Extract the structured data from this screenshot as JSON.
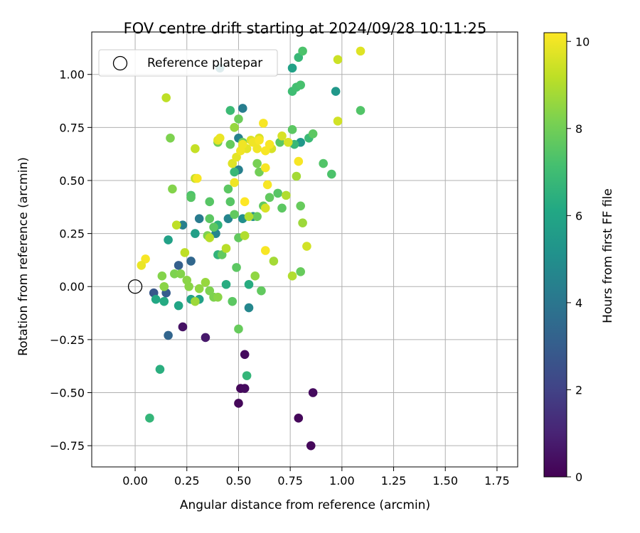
{
  "chart_data": {
    "type": "scatter",
    "title": "FOV centre drift starting at 2024/09/28 10:11:25",
    "xlabel": "Angular distance from reference (arcmin)",
    "ylabel": "Rotation from reference (arcmin)",
    "xlim": [
      -0.21,
      1.85
    ],
    "ylim": [
      -0.85,
      1.2
    ],
    "xticks": [
      "0.00",
      "0.25",
      "0.50",
      "0.75",
      "1.00",
      "1.25",
      "1.50",
      "1.75"
    ],
    "yticks": [
      "−0.75",
      "−0.50",
      "−0.25",
      "0.00",
      "0.25",
      "0.50",
      "0.75",
      "1.00"
    ],
    "xtick_values": [
      0,
      0.25,
      0.5,
      0.75,
      1.0,
      1.25,
      1.5,
      1.75
    ],
    "ytick_values": [
      -0.75,
      -0.5,
      -0.25,
      0,
      0.25,
      0.5,
      0.75,
      1.0
    ],
    "grid": true,
    "legend": {
      "position": "top-left",
      "entries": [
        "Reference platepar"
      ]
    },
    "reference_point": {
      "x": 0.0,
      "y": 0.0
    },
    "colorbar": {
      "label": "Hours from first FF file",
      "range": [
        0,
        10.2
      ],
      "ticks": [
        "0",
        "2",
        "4",
        "6",
        "8",
        "10"
      ],
      "tick_values": [
        0,
        2,
        4,
        6,
        8,
        10
      ],
      "colormap": "viridis"
    },
    "points": [
      {
        "x": 0.5,
        "y": -0.55,
        "t": 0.2
      },
      {
        "x": 0.51,
        "y": -0.48,
        "t": 0.2
      },
      {
        "x": 0.53,
        "y": -0.48,
        "t": 0.3
      },
      {
        "x": 0.53,
        "y": -0.32,
        "t": 0.3
      },
      {
        "x": 0.79,
        "y": -0.62,
        "t": 0.2
      },
      {
        "x": 0.85,
        "y": -0.75,
        "t": 0.2
      },
      {
        "x": 0.86,
        "y": -0.5,
        "t": 0.3
      },
      {
        "x": 0.23,
        "y": -0.19,
        "t": 0.5
      },
      {
        "x": 0.34,
        "y": -0.24,
        "t": 0.7
      },
      {
        "x": 0.09,
        "y": -0.03,
        "t": 2.8
      },
      {
        "x": 0.15,
        "y": -0.03,
        "t": 3.0
      },
      {
        "x": 0.16,
        "y": -0.23,
        "t": 3.3
      },
      {
        "x": 0.21,
        "y": 0.1,
        "t": 3.1
      },
      {
        "x": 0.27,
        "y": 0.12,
        "t": 3.4
      },
      {
        "x": 0.41,
        "y": 1.03,
        "t": 4.5
      },
      {
        "x": 0.52,
        "y": 0.84,
        "t": 4.3
      },
      {
        "x": 0.5,
        "y": 0.7,
        "t": 4.5
      },
      {
        "x": 0.5,
        "y": 0.55,
        "t": 4.4
      },
      {
        "x": 0.31,
        "y": 0.32,
        "t": 4.2
      },
      {
        "x": 0.23,
        "y": 0.29,
        "t": 4.4
      },
      {
        "x": 0.45,
        "y": 0.32,
        "t": 4.6
      },
      {
        "x": 0.39,
        "y": 0.25,
        "t": 4.6
      },
      {
        "x": 0.55,
        "y": -0.1,
        "t": 4.7
      },
      {
        "x": 0.52,
        "y": 0.32,
        "t": 5.0
      },
      {
        "x": 0.57,
        "y": 0.33,
        "t": 5.0
      },
      {
        "x": 0.97,
        "y": 0.92,
        "t": 5.4
      },
      {
        "x": 0.76,
        "y": 1.03,
        "t": 5.8
      },
      {
        "x": 0.8,
        "y": 0.68,
        "t": 5.4
      },
      {
        "x": 0.29,
        "y": 0.25,
        "t": 5.7
      },
      {
        "x": 0.16,
        "y": 0.22,
        "t": 5.8
      },
      {
        "x": 0.31,
        "y": -0.06,
        "t": 5.8
      },
      {
        "x": 0.27,
        "y": -0.06,
        "t": 5.9
      },
      {
        "x": 0.21,
        "y": -0.09,
        "t": 6.0
      },
      {
        "x": 0.1,
        "y": -0.06,
        "t": 6.1
      },
      {
        "x": 0.14,
        "y": -0.07,
        "t": 6.2
      },
      {
        "x": 0.44,
        "y": 0.01,
        "t": 6.3
      },
      {
        "x": 0.55,
        "y": 0.01,
        "t": 6.3
      },
      {
        "x": 0.12,
        "y": -0.39,
        "t": 6.4
      },
      {
        "x": 0.07,
        "y": -0.62,
        "t": 6.7
      },
      {
        "x": 0.54,
        "y": -0.42,
        "t": 6.7
      },
      {
        "x": 0.4,
        "y": 0.29,
        "t": 6.5
      },
      {
        "x": 0.4,
        "y": 0.15,
        "t": 6.6
      },
      {
        "x": 0.79,
        "y": 1.08,
        "t": 6.8
      },
      {
        "x": 0.46,
        "y": 0.83,
        "t": 6.9
      },
      {
        "x": 0.48,
        "y": 0.54,
        "t": 6.8
      },
      {
        "x": 0.77,
        "y": 0.67,
        "t": 6.8
      },
      {
        "x": 0.84,
        "y": 0.7,
        "t": 6.9
      },
      {
        "x": 0.76,
        "y": 0.92,
        "t": 7.0
      },
      {
        "x": 0.78,
        "y": 0.94,
        "t": 7.1
      },
      {
        "x": 0.8,
        "y": 0.95,
        "t": 7.2
      },
      {
        "x": 0.81,
        "y": 1.11,
        "t": 7.3
      },
      {
        "x": 0.91,
        "y": 0.58,
        "t": 7.4
      },
      {
        "x": 0.95,
        "y": 0.53,
        "t": 7.3
      },
      {
        "x": 1.09,
        "y": 0.83,
        "t": 7.4
      },
      {
        "x": 0.86,
        "y": 0.72,
        "t": 7.6
      },
      {
        "x": 0.76,
        "y": 0.74,
        "t": 7.6
      },
      {
        "x": 0.7,
        "y": 0.68,
        "t": 7.6
      },
      {
        "x": 0.69,
        "y": 0.44,
        "t": 7.5
      },
      {
        "x": 0.71,
        "y": 0.37,
        "t": 7.6
      },
      {
        "x": 0.65,
        "y": 0.42,
        "t": 7.7
      },
      {
        "x": 0.62,
        "y": 0.38,
        "t": 7.7
      },
      {
        "x": 0.59,
        "y": 0.33,
        "t": 7.8
      },
      {
        "x": 0.27,
        "y": 0.43,
        "t": 7.3
      },
      {
        "x": 0.27,
        "y": 0.42,
        "t": 7.5
      },
      {
        "x": 0.36,
        "y": 0.4,
        "t": 7.5
      },
      {
        "x": 0.46,
        "y": 0.4,
        "t": 7.5
      },
      {
        "x": 0.45,
        "y": 0.46,
        "t": 7.6
      },
      {
        "x": 0.36,
        "y": 0.32,
        "t": 7.6
      },
      {
        "x": 0.38,
        "y": 0.28,
        "t": 7.6
      },
      {
        "x": 0.48,
        "y": 0.34,
        "t": 7.7
      },
      {
        "x": 0.5,
        "y": 0.23,
        "t": 7.7
      },
      {
        "x": 0.49,
        "y": 0.09,
        "t": 7.6
      },
      {
        "x": 0.47,
        "y": -0.07,
        "t": 7.6
      },
      {
        "x": 0.42,
        "y": 0.15,
        "t": 7.7
      },
      {
        "x": 0.61,
        "y": -0.02,
        "t": 7.7
      },
      {
        "x": 0.5,
        "y": -0.2,
        "t": 7.8
      },
      {
        "x": 0.8,
        "y": 0.38,
        "t": 7.8
      },
      {
        "x": 0.8,
        "y": 0.07,
        "t": 7.8
      },
      {
        "x": 0.46,
        "y": 0.67,
        "t": 7.8
      },
      {
        "x": 0.5,
        "y": 0.79,
        "t": 7.9
      },
      {
        "x": 0.52,
        "y": 0.68,
        "t": 8.0
      },
      {
        "x": 0.4,
        "y": 0.68,
        "t": 8.0
      },
      {
        "x": 0.17,
        "y": 0.7,
        "t": 8.2
      },
      {
        "x": 0.18,
        "y": 0.46,
        "t": 8.3
      },
      {
        "x": 0.6,
        "y": 0.54,
        "t": 8.0
      },
      {
        "x": 0.59,
        "y": 0.58,
        "t": 8.1
      },
      {
        "x": 0.19,
        "y": 0.06,
        "t": 8.2
      },
      {
        "x": 0.22,
        "y": 0.06,
        "t": 8.3
      },
      {
        "x": 0.13,
        "y": 0.05,
        "t": 8.3
      },
      {
        "x": 0.35,
        "y": 0.24,
        "t": 8.2
      },
      {
        "x": 0.36,
        "y": -0.02,
        "t": 8.2
      },
      {
        "x": 0.38,
        "y": -0.05,
        "t": 8.2
      },
      {
        "x": 0.4,
        "y": -0.05,
        "t": 8.4
      },
      {
        "x": 0.26,
        "y": 0.0,
        "t": 8.4
      },
      {
        "x": 0.14,
        "y": 0.0,
        "t": 8.4
      },
      {
        "x": 0.25,
        "y": 0.03,
        "t": 8.4
      },
      {
        "x": 0.31,
        "y": -0.01,
        "t": 8.5
      },
      {
        "x": 0.34,
        "y": 0.02,
        "t": 8.6
      },
      {
        "x": 0.29,
        "y": -0.07,
        "t": 8.7
      },
      {
        "x": 0.58,
        "y": 0.05,
        "t": 8.5
      },
      {
        "x": 0.48,
        "y": 0.75,
        "t": 8.6
      },
      {
        "x": 0.81,
        "y": 0.3,
        "t": 8.7
      },
      {
        "x": 0.78,
        "y": 0.52,
        "t": 8.8
      },
      {
        "x": 0.67,
        "y": 0.12,
        "t": 8.8
      },
      {
        "x": 0.76,
        "y": 0.05,
        "t": 9.0
      },
      {
        "x": 0.73,
        "y": 0.43,
        "t": 9.0
      },
      {
        "x": 0.55,
        "y": 0.33,
        "t": 9.0
      },
      {
        "x": 0.53,
        "y": 0.24,
        "t": 9.0
      },
      {
        "x": 0.44,
        "y": 0.18,
        "t": 9.1
      },
      {
        "x": 0.36,
        "y": 0.23,
        "t": 9.1
      },
      {
        "x": 0.24,
        "y": 0.16,
        "t": 9.2
      },
      {
        "x": 0.2,
        "y": 0.29,
        "t": 9.2
      },
      {
        "x": 0.29,
        "y": 0.51,
        "t": 9.3
      },
      {
        "x": 0.29,
        "y": 0.65,
        "t": 9.3
      },
      {
        "x": 0.15,
        "y": 0.89,
        "t": 9.2
      },
      {
        "x": 0.98,
        "y": 1.07,
        "t": 9.4
      },
      {
        "x": 0.98,
        "y": 0.78,
        "t": 9.5
      },
      {
        "x": 0.83,
        "y": 0.19,
        "t": 9.5
      },
      {
        "x": 0.63,
        "y": 0.37,
        "t": 9.6
      },
      {
        "x": 0.74,
        "y": 0.68,
        "t": 9.6
      },
      {
        "x": 0.71,
        "y": 0.71,
        "t": 9.6
      },
      {
        "x": 0.66,
        "y": 0.65,
        "t": 9.6
      },
      {
        "x": 0.6,
        "y": 0.7,
        "t": 9.6
      },
      {
        "x": 0.56,
        "y": 0.69,
        "t": 9.7
      },
      {
        "x": 0.54,
        "y": 0.65,
        "t": 9.8
      },
      {
        "x": 0.47,
        "y": 0.58,
        "t": 9.7
      },
      {
        "x": 0.49,
        "y": 0.61,
        "t": 9.8
      },
      {
        "x": 0.4,
        "y": 0.69,
        "t": 9.8
      },
      {
        "x": 0.41,
        "y": 0.7,
        "t": 9.9
      },
      {
        "x": 0.51,
        "y": 0.64,
        "t": 10.0
      },
      {
        "x": 0.57,
        "y": 0.68,
        "t": 10.0
      },
      {
        "x": 0.59,
        "y": 0.65,
        "t": 10.0
      },
      {
        "x": 0.62,
        "y": 0.77,
        "t": 10.1
      },
      {
        "x": 0.63,
        "y": 0.56,
        "t": 10.1
      },
      {
        "x": 0.64,
        "y": 0.48,
        "t": 10.1
      },
      {
        "x": 0.48,
        "y": 0.49,
        "t": 10.0
      },
      {
        "x": 0.52,
        "y": 0.67,
        "t": 10.0
      },
      {
        "x": 0.63,
        "y": 0.64,
        "t": 10.1
      },
      {
        "x": 0.65,
        "y": 0.67,
        "t": 10.1
      },
      {
        "x": 0.53,
        "y": 0.4,
        "t": 10.2
      },
      {
        "x": 0.63,
        "y": 0.17,
        "t": 10.1
      },
      {
        "x": 0.6,
        "y": 0.69,
        "t": 10.1
      },
      {
        "x": 0.79,
        "y": 0.59,
        "t": 10.1
      },
      {
        "x": 0.3,
        "y": 0.51,
        "t": 10.1
      },
      {
        "x": 0.05,
        "y": 0.13,
        "t": 10.1
      },
      {
        "x": 0.03,
        "y": 0.1,
        "t": 9.9
      },
      {
        "x": 1.09,
        "y": 1.11,
        "t": 9.7
      }
    ]
  }
}
